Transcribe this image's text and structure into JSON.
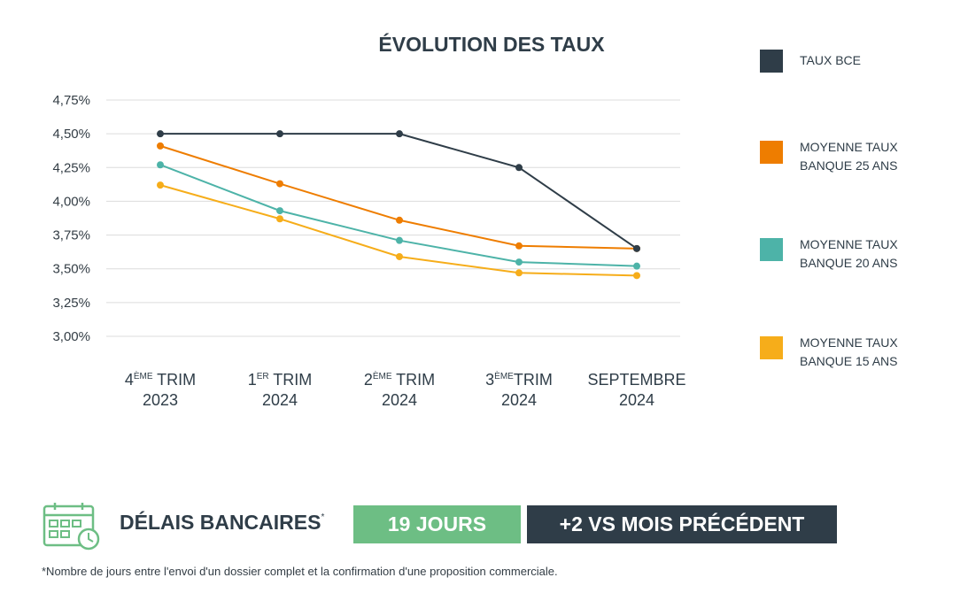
{
  "chart_data": {
    "type": "line",
    "title": "ÉVOLUTION DES TAUX",
    "categories": [
      {
        "prefix": "4",
        "sup": "ÈME",
        "suffix": " TRIM",
        "line2": "2023"
      },
      {
        "prefix": "1",
        "sup": "ER",
        "suffix": " TRIM",
        "line2": "2024"
      },
      {
        "prefix": "2",
        "sup": "ÈME",
        "suffix": " TRIM",
        "line2": "2024"
      },
      {
        "prefix": "3",
        "sup": "ÈME",
        "suffix": "TRIM",
        "line2": "2024"
      },
      {
        "prefix": "SEPTEMBRE",
        "sup": "",
        "suffix": "",
        "line2": "2024"
      }
    ],
    "ylim": [
      3.0,
      4.75
    ],
    "yticks": [
      3.0,
      3.25,
      3.5,
      3.75,
      4.0,
      4.25,
      4.5,
      4.75
    ],
    "ytick_labels": [
      "3,00%",
      "3,25%",
      "3,50%",
      "3,75%",
      "4,00%",
      "4,25%",
      "4,50%",
      "4,75%"
    ],
    "grid": true,
    "legend_position": "right",
    "series": [
      {
        "name": "TAUX BCE",
        "color": "#2f3d48",
        "values": [
          4.5,
          4.5,
          4.5,
          4.25,
          3.65
        ]
      },
      {
        "name": "MOYENNE TAUX\nBANQUE 25 ANS",
        "color": "#ee7d00",
        "values": [
          4.41,
          4.13,
          3.86,
          3.67,
          3.65
        ]
      },
      {
        "name": "MOYENNE TAUX\nBANQUE 20 ANS",
        "color": "#4db3a8",
        "values": [
          4.27,
          3.93,
          3.71,
          3.55,
          3.52
        ]
      },
      {
        "name": "MOYENNE TAUX\nBANQUE 15 ANS",
        "color": "#f6ad1a",
        "values": [
          4.12,
          3.87,
          3.59,
          3.47,
          3.45
        ]
      }
    ]
  },
  "bottom": {
    "delay_label": "DÉLAIS BANCAIRES",
    "delay_mark": "*",
    "days": "19 JOURS",
    "delta": "+2 VS MOIS PRÉCÉDENT",
    "footnote": "*Nombre de jours entre l'envoi d'un dossier complet et la confirmation d'une proposition commerciale.",
    "icon": "calendar-clock-icon",
    "icon_color": "#6dbe84"
  }
}
